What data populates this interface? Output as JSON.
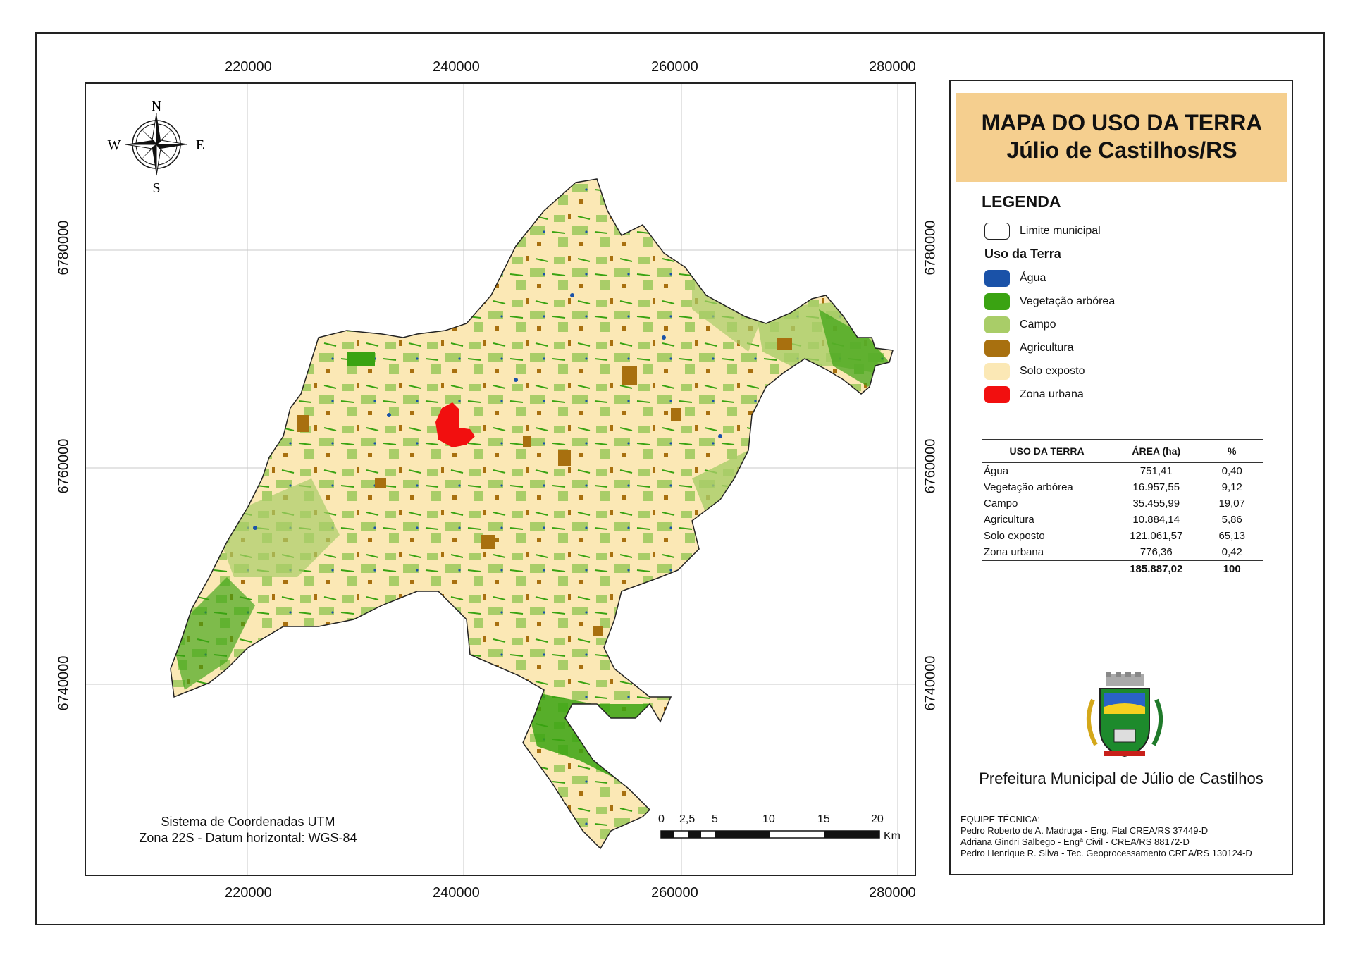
{
  "title": {
    "line1": "MAPA DO USO DA TERRA",
    "line2": "Júlio de Castilhos/RS"
  },
  "compass": {
    "n": "N",
    "s": "S",
    "e": "E",
    "w": "W"
  },
  "axes": {
    "x_ticks": [
      "220000",
      "240000",
      "260000",
      "280000"
    ],
    "y_ticks": [
      "6780000",
      "6760000",
      "6740000"
    ]
  },
  "legend": {
    "title": "LEGENDA",
    "boundary_label": "Limite municipal",
    "subtitle": "Uso da Terra",
    "items": [
      {
        "label": "Água",
        "color": "#1a52a8"
      },
      {
        "label": "Vegetação arbórea",
        "color": "#3aa312"
      },
      {
        "label": "Campo",
        "color": "#a9cd68"
      },
      {
        "label": "Agricultura",
        "color": "#a8700f"
      },
      {
        "label": "Solo exposto",
        "color": "#fbe8b5"
      },
      {
        "label": "Zona urbana",
        "color": "#f20f0f"
      }
    ]
  },
  "table": {
    "headers": [
      "USO DA TERRA",
      "ÁREA (ha)",
      "%"
    ],
    "rows": [
      [
        "Água",
        "751,41",
        "0,40"
      ],
      [
        "Vegetação arbórea",
        "16.957,55",
        "9,12"
      ],
      [
        "Campo",
        "35.455,99",
        "19,07"
      ],
      [
        "Agricultura",
        "10.884,14",
        "5,86"
      ],
      [
        "Solo exposto",
        "121.061,57",
        "65,13"
      ],
      [
        "Zona urbana",
        "776,36",
        "0,42"
      ]
    ],
    "total": [
      "",
      "185.887,02",
      "100"
    ]
  },
  "coordinate_system": {
    "line1": "Sistema de Coordenadas UTM",
    "line2": "Zona 22S - Datum horizontal: WGS-84"
  },
  "scale_bar": {
    "labels": [
      "0",
      "2,5",
      "5",
      "10",
      "15",
      "20"
    ],
    "unit": "Km"
  },
  "prefeitura": "Prefeitura Municipal de Júlio de Castilhos",
  "equipe": {
    "heading": "EQUIPE TÉCNICA:",
    "members": [
      "Pedro Roberto de A. Madruga - Eng. Ftal CREA/RS 37449-D",
      "Adriana Gindri Salbego - Engª Civil - CREA/RS 88172-D",
      "Pedro Henrique R. Silva - Tec. Geoprocessamento CREA/RS 130124-D"
    ]
  },
  "colors": {
    "title_bg": "#f5cf8f",
    "grid": "#c8c8c8",
    "water": "#1a52a8",
    "forest": "#3aa312",
    "field": "#a9cd68",
    "agriculture": "#a8700f",
    "bare_soil": "#fbe8b5",
    "urban": "#f20f0f"
  }
}
